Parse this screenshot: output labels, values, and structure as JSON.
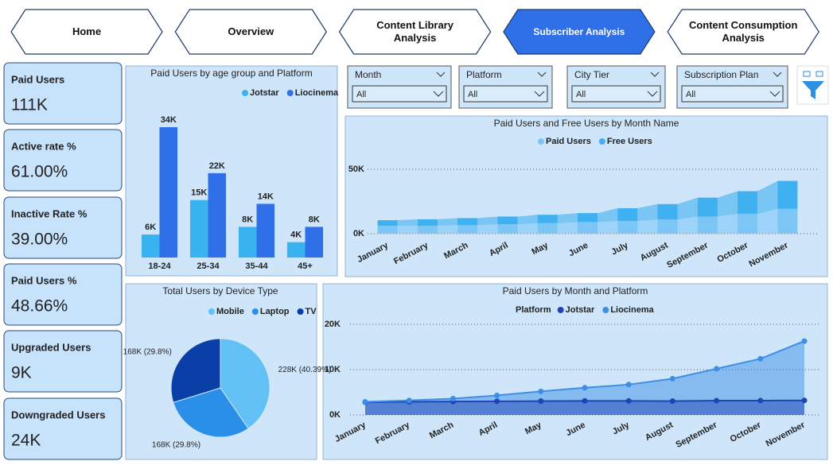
{
  "nav": [
    {
      "label": "Home",
      "active": false
    },
    {
      "label": "Overview",
      "active": false
    },
    {
      "label": "Content Library Analysis",
      "active": false
    },
    {
      "label": "Subscriber Analysis",
      "active": true
    },
    {
      "label": "Content Consumption Analysis",
      "active": false
    }
  ],
  "kpis": [
    {
      "label": "Paid Users",
      "value": "111K"
    },
    {
      "label": "Active rate %",
      "value": "61.00%"
    },
    {
      "label": "Inactive Rate %",
      "value": "39.00%"
    },
    {
      "label": "Paid Users %",
      "value": "48.66%"
    },
    {
      "label": "Upgraded Users",
      "value": "9K"
    },
    {
      "label": "Downgraded Users",
      "value": "24K"
    }
  ],
  "filters": [
    {
      "label": "Month",
      "value": "All"
    },
    {
      "label": "Platform",
      "value": "All"
    },
    {
      "label": "City Tier",
      "value": "All"
    },
    {
      "label": "Subscription Plan",
      "value": "All"
    }
  ],
  "chart_data": [
    {
      "type": "bar",
      "title": "Paid Users by age group and Platform",
      "categories": [
        "18-24",
        "25-34",
        "35-44",
        "45+"
      ],
      "series": [
        {
          "name": "Jotstar",
          "color": "#39b3f0",
          "values": [
            6000,
            15000,
            8000,
            4000
          ],
          "value_labels": [
            "6K",
            "15K",
            "8K",
            "4K"
          ]
        },
        {
          "name": "Liocinema",
          "color": "#2f6fe8",
          "values": [
            34000,
            22000,
            14000,
            8000
          ],
          "value_labels": [
            "34K",
            "22K",
            "14K",
            "8K"
          ]
        }
      ]
    },
    {
      "type": "area",
      "title": "Paid Users and Free Users by Month Name",
      "categories": [
        "January",
        "February",
        "March",
        "April",
        "May",
        "June",
        "July",
        "August",
        "September",
        "October",
        "November"
      ],
      "series": [
        {
          "name": "Paid Users",
          "color": "#7cc6f6",
          "values": [
            6000,
            6200,
            6600,
            7300,
            8200,
            9000,
            9800,
            11000,
            13300,
            15500,
            19300
          ]
        },
        {
          "name": "Free Users",
          "color": "#3fb0f0",
          "values": [
            4500,
            5000,
            5500,
            6000,
            6500,
            7000,
            10000,
            12000,
            14700,
            17500,
            21700
          ]
        }
      ],
      "ylim": [
        0,
        65000
      ],
      "yticks": [
        {
          "value": 0,
          "label": "0K"
        },
        {
          "value": 50000,
          "label": "50K"
        }
      ],
      "grid": true
    },
    {
      "type": "pie",
      "title": "Total Users by Device Type",
      "categories": [
        "Mobile",
        "Laptop",
        "TV"
      ],
      "values": [
        228000,
        168000,
        168000
      ],
      "value_labels": [
        "228K (40.39%)",
        "168K (29.8%)",
        "168K (29.8%)"
      ],
      "colors": [
        "#62c0f5",
        "#2a8fe8",
        "#0a3fa8"
      ]
    },
    {
      "type": "line",
      "title": "Paid Users by Month and Platform",
      "legend_title": "Platform",
      "categories": [
        "January",
        "February",
        "March",
        "April",
        "May",
        "June",
        "July",
        "August",
        "September",
        "October",
        "November"
      ],
      "series": [
        {
          "name": "Jotstar",
          "color": "#1f45b5",
          "values": [
            2800,
            2900,
            2950,
            3000,
            3050,
            3100,
            3100,
            3050,
            3150,
            3150,
            3200
          ]
        },
        {
          "name": "Liocinema",
          "color": "#3d8fe6",
          "values": [
            2900,
            3200,
            3600,
            4300,
            5200,
            6000,
            6700,
            8000,
            10200,
            12400,
            16300
          ]
        }
      ],
      "ylim": [
        0,
        20000
      ],
      "yticks": [
        {
          "value": 0,
          "label": "0K"
        },
        {
          "value": 10000,
          "label": "10K"
        },
        {
          "value": 20000,
          "label": "20K"
        }
      ],
      "grid": true
    }
  ]
}
